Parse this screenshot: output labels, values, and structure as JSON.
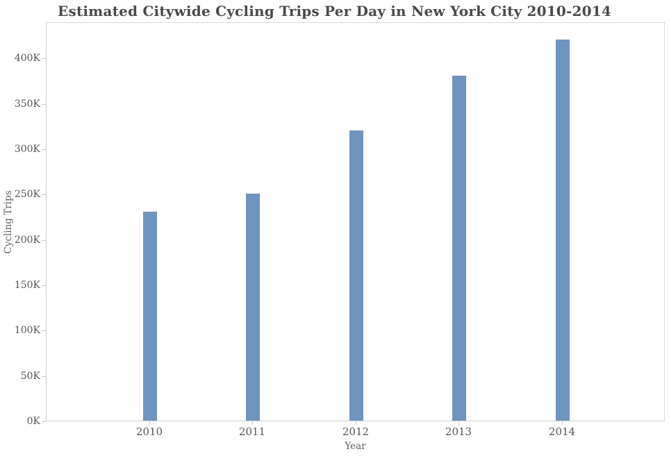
{
  "chart_data": {
    "type": "bar",
    "title": "Estimated Citywide Cycling Trips Per Day in New York City 2010-2014",
    "xlabel": "Year",
    "ylabel": "Cycling Trips",
    "categories": [
      "2010",
      "2011",
      "2012",
      "2013",
      "2014"
    ],
    "values": [
      230000,
      250000,
      320000,
      380000,
      420000
    ],
    "ylim": [
      0,
      440000
    ],
    "yticks": [
      0,
      50000,
      100000,
      150000,
      200000,
      250000,
      300000,
      350000,
      400000
    ],
    "ytick_labels": [
      "0K",
      "50K",
      "100K",
      "150K",
      "200K",
      "250K",
      "300K",
      "350K",
      "400K"
    ],
    "grid": false,
    "legend": "none",
    "colors": {
      "bar": "#6e94c0",
      "title_text": "#4a4a4a",
      "tick_label_text": "#545454",
      "axis_title_text": "#616161",
      "tick_mark": "#c9c9c9",
      "axis_line": "#cfcfcf",
      "plot_border": "#dcdcdc"
    }
  }
}
